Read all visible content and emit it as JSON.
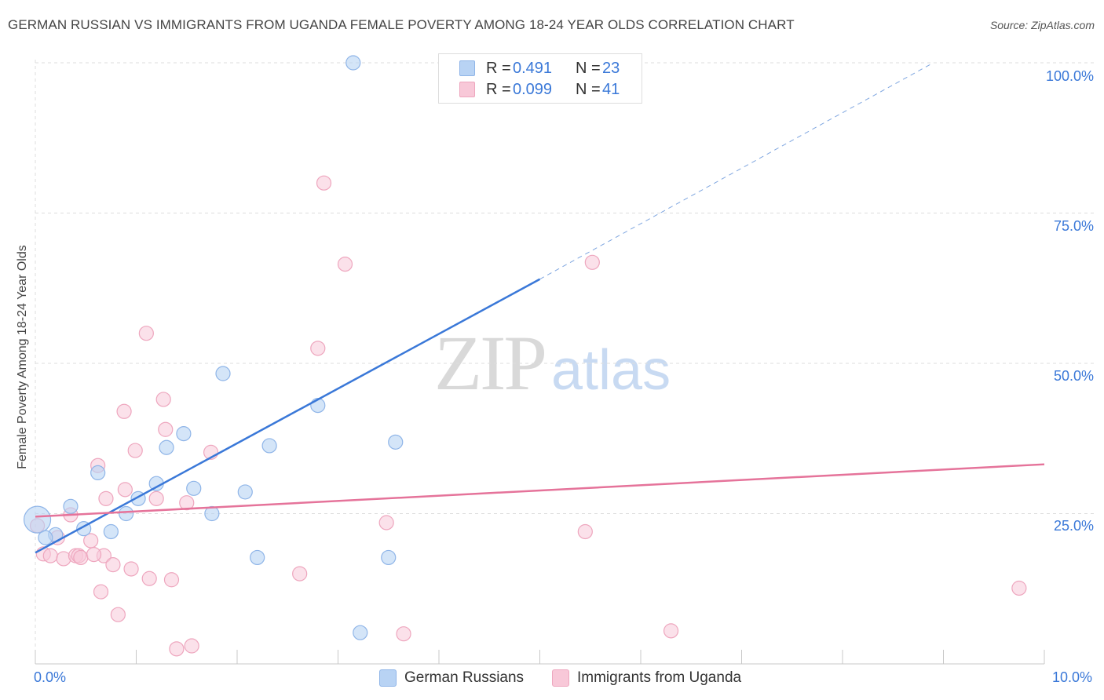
{
  "header": {
    "title": "GERMAN RUSSIAN VS IMMIGRANTS FROM UGANDA FEMALE POVERTY AMONG 18-24 YEAR OLDS CORRELATION CHART",
    "source": "Source: ZipAtlas.com"
  },
  "legend": {
    "series1": {
      "r_label": "R =",
      "r_value": "0.491",
      "n_label": "N =",
      "n_value": "23"
    },
    "series2": {
      "r_label": "R =",
      "r_value": "0.099",
      "n_label": "N =",
      "n_value": "41"
    }
  },
  "bottom_legend": {
    "series1": "German Russians",
    "series2": "Immigrants from Uganda"
  },
  "axes": {
    "ylabel": "Female Poverty Among 18-24 Year Olds",
    "y_ticks": [
      "100.0%",
      "75.0%",
      "50.0%",
      "25.0%"
    ],
    "x_min": "0.0%",
    "x_max": "10.0%"
  },
  "watermark": {
    "zip": "ZIP",
    "atlas": "atlas"
  },
  "colors": {
    "blue": "#3a78d8",
    "blue_fill": "#b8d3f4",
    "pink": "#e5739a",
    "pink_fill": "#f8c8d8",
    "grid": "#dddddd"
  },
  "chart_data": {
    "type": "scatter",
    "title": "GERMAN RUSSIAN VS IMMIGRANTS FROM UGANDA FEMALE POVERTY AMONG 18-24 YEAR OLDS CORRELATION CHART",
    "xlabel": "",
    "ylabel": "Female Poverty Among 18-24 Year Olds",
    "xlim": [
      0,
      10
    ],
    "ylim": [
      0,
      100
    ],
    "x_unit": "%",
    "y_unit": "%",
    "grid": true,
    "legend_position": "top-center",
    "series": [
      {
        "name": "German Russians",
        "color": "#3a78d8",
        "R": 0.491,
        "N": 23,
        "trendline": {
          "x": [
            0.0,
            5.0
          ],
          "y": [
            18.5,
            64.0
          ],
          "dashed_extension_to": [
            8.9,
            100.0
          ]
        },
        "points": [
          {
            "x": 0.02,
            "y": 24.0
          },
          {
            "x": 0.35,
            "y": 26.2
          },
          {
            "x": 0.2,
            "y": 21.5
          },
          {
            "x": 0.48,
            "y": 22.5
          },
          {
            "x": 0.62,
            "y": 31.8
          },
          {
            "x": 0.75,
            "y": 22.0
          },
          {
            "x": 0.9,
            "y": 25.0
          },
          {
            "x": 1.02,
            "y": 27.5
          },
          {
            "x": 1.2,
            "y": 30.0
          },
          {
            "x": 1.3,
            "y": 36.0
          },
          {
            "x": 1.47,
            "y": 38.3
          },
          {
            "x": 1.57,
            "y": 29.2
          },
          {
            "x": 1.75,
            "y": 25.0
          },
          {
            "x": 1.86,
            "y": 48.3
          },
          {
            "x": 2.08,
            "y": 28.6
          },
          {
            "x": 2.2,
            "y": 17.7
          },
          {
            "x": 2.32,
            "y": 36.3
          },
          {
            "x": 2.8,
            "y": 43.0
          },
          {
            "x": 3.22,
            "y": 5.2
          },
          {
            "x": 3.5,
            "y": 17.7
          },
          {
            "x": 3.57,
            "y": 36.9
          },
          {
            "x": 3.15,
            "y": 100.0
          },
          {
            "x": 0.1,
            "y": 21.0
          }
        ]
      },
      {
        "name": "Immigrants from Uganda",
        "color": "#e5739a",
        "R": 0.099,
        "N": 41,
        "trendline": {
          "x": [
            0.0,
            10.0
          ],
          "y": [
            24.5,
            33.2
          ]
        },
        "points": [
          {
            "x": 0.02,
            "y": 23.0
          },
          {
            "x": 0.08,
            "y": 18.3
          },
          {
            "x": 0.15,
            "y": 18.0
          },
          {
            "x": 0.22,
            "y": 21.0
          },
          {
            "x": 0.28,
            "y": 17.5
          },
          {
            "x": 0.35,
            "y": 24.8
          },
          {
            "x": 0.4,
            "y": 18.0
          },
          {
            "x": 0.43,
            "y": 18.0
          },
          {
            "x": 0.45,
            "y": 17.7
          },
          {
            "x": 0.68,
            "y": 18.0
          },
          {
            "x": 0.55,
            "y": 20.5
          },
          {
            "x": 0.58,
            "y": 18.2
          },
          {
            "x": 0.62,
            "y": 33.0
          },
          {
            "x": 0.7,
            "y": 27.5
          },
          {
            "x": 0.65,
            "y": 12.0
          },
          {
            "x": 0.77,
            "y": 16.5
          },
          {
            "x": 0.82,
            "y": 8.2
          },
          {
            "x": 0.88,
            "y": 42.0
          },
          {
            "x": 0.89,
            "y": 29.0
          },
          {
            "x": 0.95,
            "y": 15.8
          },
          {
            "x": 0.99,
            "y": 35.5
          },
          {
            "x": 1.1,
            "y": 55.0
          },
          {
            "x": 1.13,
            "y": 14.2
          },
          {
            "x": 1.2,
            "y": 27.5
          },
          {
            "x": 1.27,
            "y": 44.0
          },
          {
            "x": 1.29,
            "y": 39.0
          },
          {
            "x": 1.35,
            "y": 14.0
          },
          {
            "x": 1.4,
            "y": 2.5
          },
          {
            "x": 1.5,
            "y": 26.8
          },
          {
            "x": 1.55,
            "y": 3.0
          },
          {
            "x": 1.74,
            "y": 35.2
          },
          {
            "x": 2.62,
            "y": 15.0
          },
          {
            "x": 2.8,
            "y": 52.5
          },
          {
            "x": 2.86,
            "y": 80.0
          },
          {
            "x": 3.07,
            "y": 66.5
          },
          {
            "x": 3.48,
            "y": 23.5
          },
          {
            "x": 3.65,
            "y": 5.0
          },
          {
            "x": 5.45,
            "y": 22.0
          },
          {
            "x": 5.52,
            "y": 66.8
          },
          {
            "x": 6.3,
            "y": 5.5
          },
          {
            "x": 9.75,
            "y": 12.6
          }
        ]
      }
    ]
  }
}
